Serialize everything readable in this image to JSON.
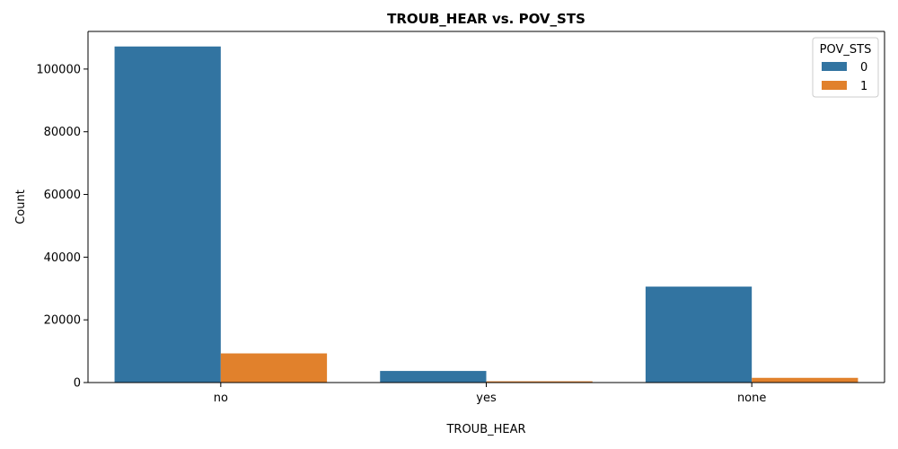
{
  "chart_data": {
    "type": "bar",
    "title": "TROUB_HEAR vs. POV_STS",
    "xlabel": "TROUB_HEAR",
    "ylabel": "Count",
    "categories": [
      "no",
      "yes",
      "none"
    ],
    "series": [
      {
        "name": "0",
        "values": [
          107200,
          3700,
          30600
        ],
        "color": "#3274a1"
      },
      {
        "name": "1",
        "values": [
          9300,
          400,
          1500
        ],
        "color": "#e1812c"
      }
    ],
    "ylim": [
      0,
      112000
    ],
    "yticks": [
      0,
      20000,
      40000,
      60000,
      80000,
      100000
    ],
    "grid": false,
    "legend": {
      "title": "POV_STS",
      "placement": "top-right"
    }
  }
}
